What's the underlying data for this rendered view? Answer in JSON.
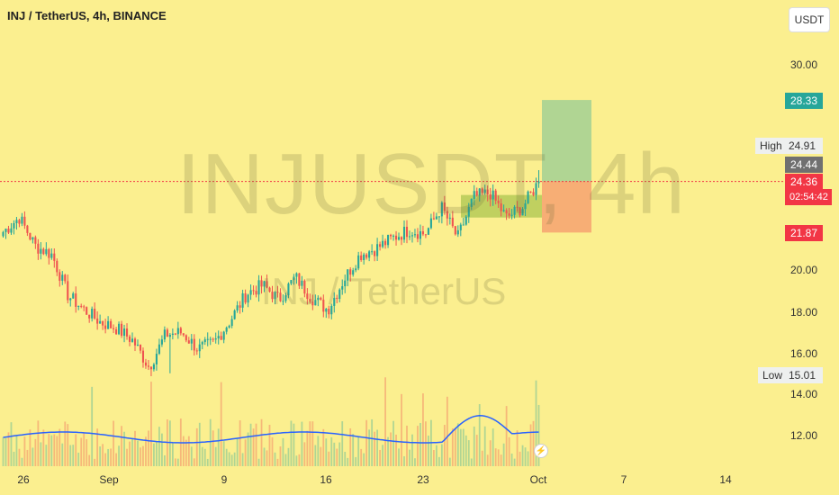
{
  "header": {
    "title": "INJ / TetherUS, 4h, BINANCE",
    "currency": "USDT"
  },
  "watermark": {
    "symbol": "INJUSDT, 4h",
    "name": "INJ / TetherUS"
  },
  "colors": {
    "background": "#fbef8f",
    "up": "#26a69a",
    "down": "#ef5350",
    "volume_line": "#2962ff",
    "target": "#26a69a",
    "stop": "#f23645"
  },
  "axis": {
    "y_ticks": [
      "30.00",
      "20.00",
      "18.00",
      "16.00",
      "14.00",
      "12.00"
    ],
    "x_ticks": [
      "26",
      "Sep",
      "9",
      "16",
      "23",
      "Oct",
      "7",
      "14"
    ]
  },
  "tags": {
    "target": "28.33",
    "high_label": "High",
    "high_value": "24.91",
    "last": "24.44",
    "current_price": "24.36",
    "countdown": "02:54:42",
    "stop": "21.87",
    "low_label": "Low",
    "low_value": "15.01"
  },
  "chart_data": {
    "type": "candlestick",
    "title": "INJ / TetherUS, 4h, BINANCE",
    "price_range": [
      11.0,
      32.0
    ],
    "x_ticks": [
      "26",
      "Sep",
      "9",
      "16",
      "23",
      "Oct",
      "7",
      "14"
    ],
    "anchor_prices": [
      21.9,
      22.6,
      21.2,
      20.8,
      18.8,
      18.1,
      17.5,
      17.2,
      16.6,
      15.3,
      16.9,
      17.0,
      16.2,
      16.5,
      17.6,
      18.9,
      19.3,
      18.6,
      19.7,
      18.7,
      18.1,
      19.6,
      20.8,
      21.1,
      21.6,
      22.0,
      21.8,
      23.1,
      21.6,
      23.6,
      23.8,
      22.6,
      23.1,
      24.36
    ],
    "high": 24.91,
    "low": 15.01,
    "last": 24.44,
    "current": 24.36,
    "position": {
      "entry": 24.36,
      "target": 28.33,
      "stop": 21.87
    },
    "consolidation_zone": [
      22.6,
      23.7
    ]
  }
}
